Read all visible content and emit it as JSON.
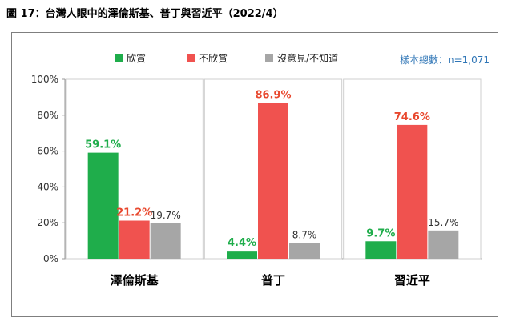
{
  "title": "圖 17：台灣人眼中的澤倫斯基、普丁與習近平（2022/4）",
  "sample_note": "樣本總數：n=1,071",
  "chart_data": {
    "type": "bar",
    "title": "",
    "xlabel": "",
    "ylabel": "",
    "categories": [
      "澤倫斯基",
      "普丁",
      "習近平"
    ],
    "series": [
      {
        "name": "欣賞",
        "color": "#1fad4b",
        "values": [
          59.1,
          4.4,
          9.7
        ],
        "labels": [
          "59.1%",
          "4.4%",
          "9.7%"
        ],
        "label_color": "#1fad4b"
      },
      {
        "name": "不欣賞",
        "color": "#f0524f",
        "values": [
          21.2,
          86.9,
          74.6
        ],
        "labels": [
          "21.2%",
          "86.9%",
          "74.6%"
        ],
        "label_color": "#e8482e"
      },
      {
        "name": "沒意見/不知道",
        "color": "#a6a6a6",
        "values": [
          19.7,
          8.7,
          15.7
        ],
        "labels": [
          "19.7%",
          "8.7%",
          "15.7%"
        ],
        "label_color": "#333333"
      }
    ],
    "ylim": [
      0,
      100
    ],
    "yticks": [
      0,
      20,
      40,
      60,
      80,
      100
    ],
    "ytick_labels": [
      "0%",
      "20%",
      "40%",
      "60%",
      "80%",
      "100%"
    ],
    "grid": false,
    "legend_position": "top-center"
  }
}
